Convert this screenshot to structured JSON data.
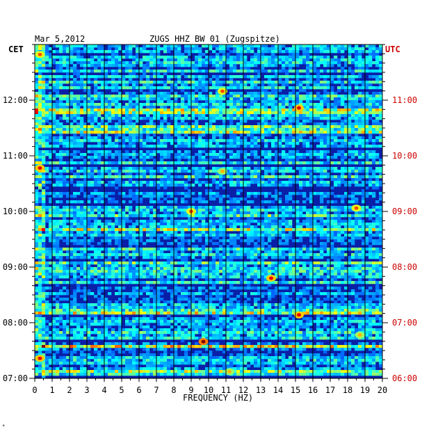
{
  "header": {
    "date": "Mar 5,2012",
    "station": "ZUGS HHZ BW 01 (Zugspitze)",
    "left_tz": "CET",
    "right_tz": "UTC"
  },
  "colors": {
    "background": "#ffffff",
    "plot_base": "#0a1fa8",
    "left_label": "#000000",
    "right_label": "#cc0000",
    "grid": "#000000"
  },
  "chart_data": {
    "type": "heatmap",
    "title": "ZUGS HHZ BW 01 (Zugspitze)",
    "xlabel": "FREQUENCY (HZ)",
    "ylabel": "",
    "x_range": [
      0,
      20
    ],
    "x_ticks": [
      "0",
      "1",
      "2",
      "3",
      "4",
      "5",
      "6",
      "7",
      "8",
      "9",
      "10",
      "11",
      "12",
      "13",
      "14",
      "15",
      "16",
      "17",
      "18",
      "19",
      "20"
    ],
    "y_left_ticks": [
      "12:00",
      "11:00",
      "10:00",
      "09:00",
      "08:00",
      "07:00"
    ],
    "y_right_ticks": [
      "11:00",
      "10:00",
      "09:00",
      "08:00",
      "07:00",
      "06:00"
    ],
    "grid": true,
    "colormap": "jet",
    "hotspots": [
      {
        "freq": 0.3,
        "time_frac": 0.97,
        "level": 0.8
      },
      {
        "freq": 0.3,
        "time_frac": 0.63,
        "level": 0.9
      },
      {
        "freq": 0.3,
        "time_frac": 0.06,
        "level": 0.9
      },
      {
        "freq": 10.8,
        "time_frac": 0.86,
        "level": 0.8
      },
      {
        "freq": 10.8,
        "time_frac": 0.62,
        "level": 0.7
      },
      {
        "freq": 9.0,
        "time_frac": 0.5,
        "level": 0.8
      },
      {
        "freq": 13.6,
        "time_frac": 0.3,
        "level": 0.9
      },
      {
        "freq": 15.2,
        "time_frac": 0.81,
        "level": 0.9
      },
      {
        "freq": 15.2,
        "time_frac": 0.19,
        "level": 0.9
      },
      {
        "freq": 18.5,
        "time_frac": 0.51,
        "level": 0.8
      },
      {
        "freq": 18.7,
        "time_frac": 0.13,
        "level": 0.7
      },
      {
        "freq": 9.7,
        "time_frac": 0.11,
        "level": 1.0
      },
      {
        "freq": 11.2,
        "time_frac": 0.02,
        "level": 0.7
      }
    ]
  }
}
